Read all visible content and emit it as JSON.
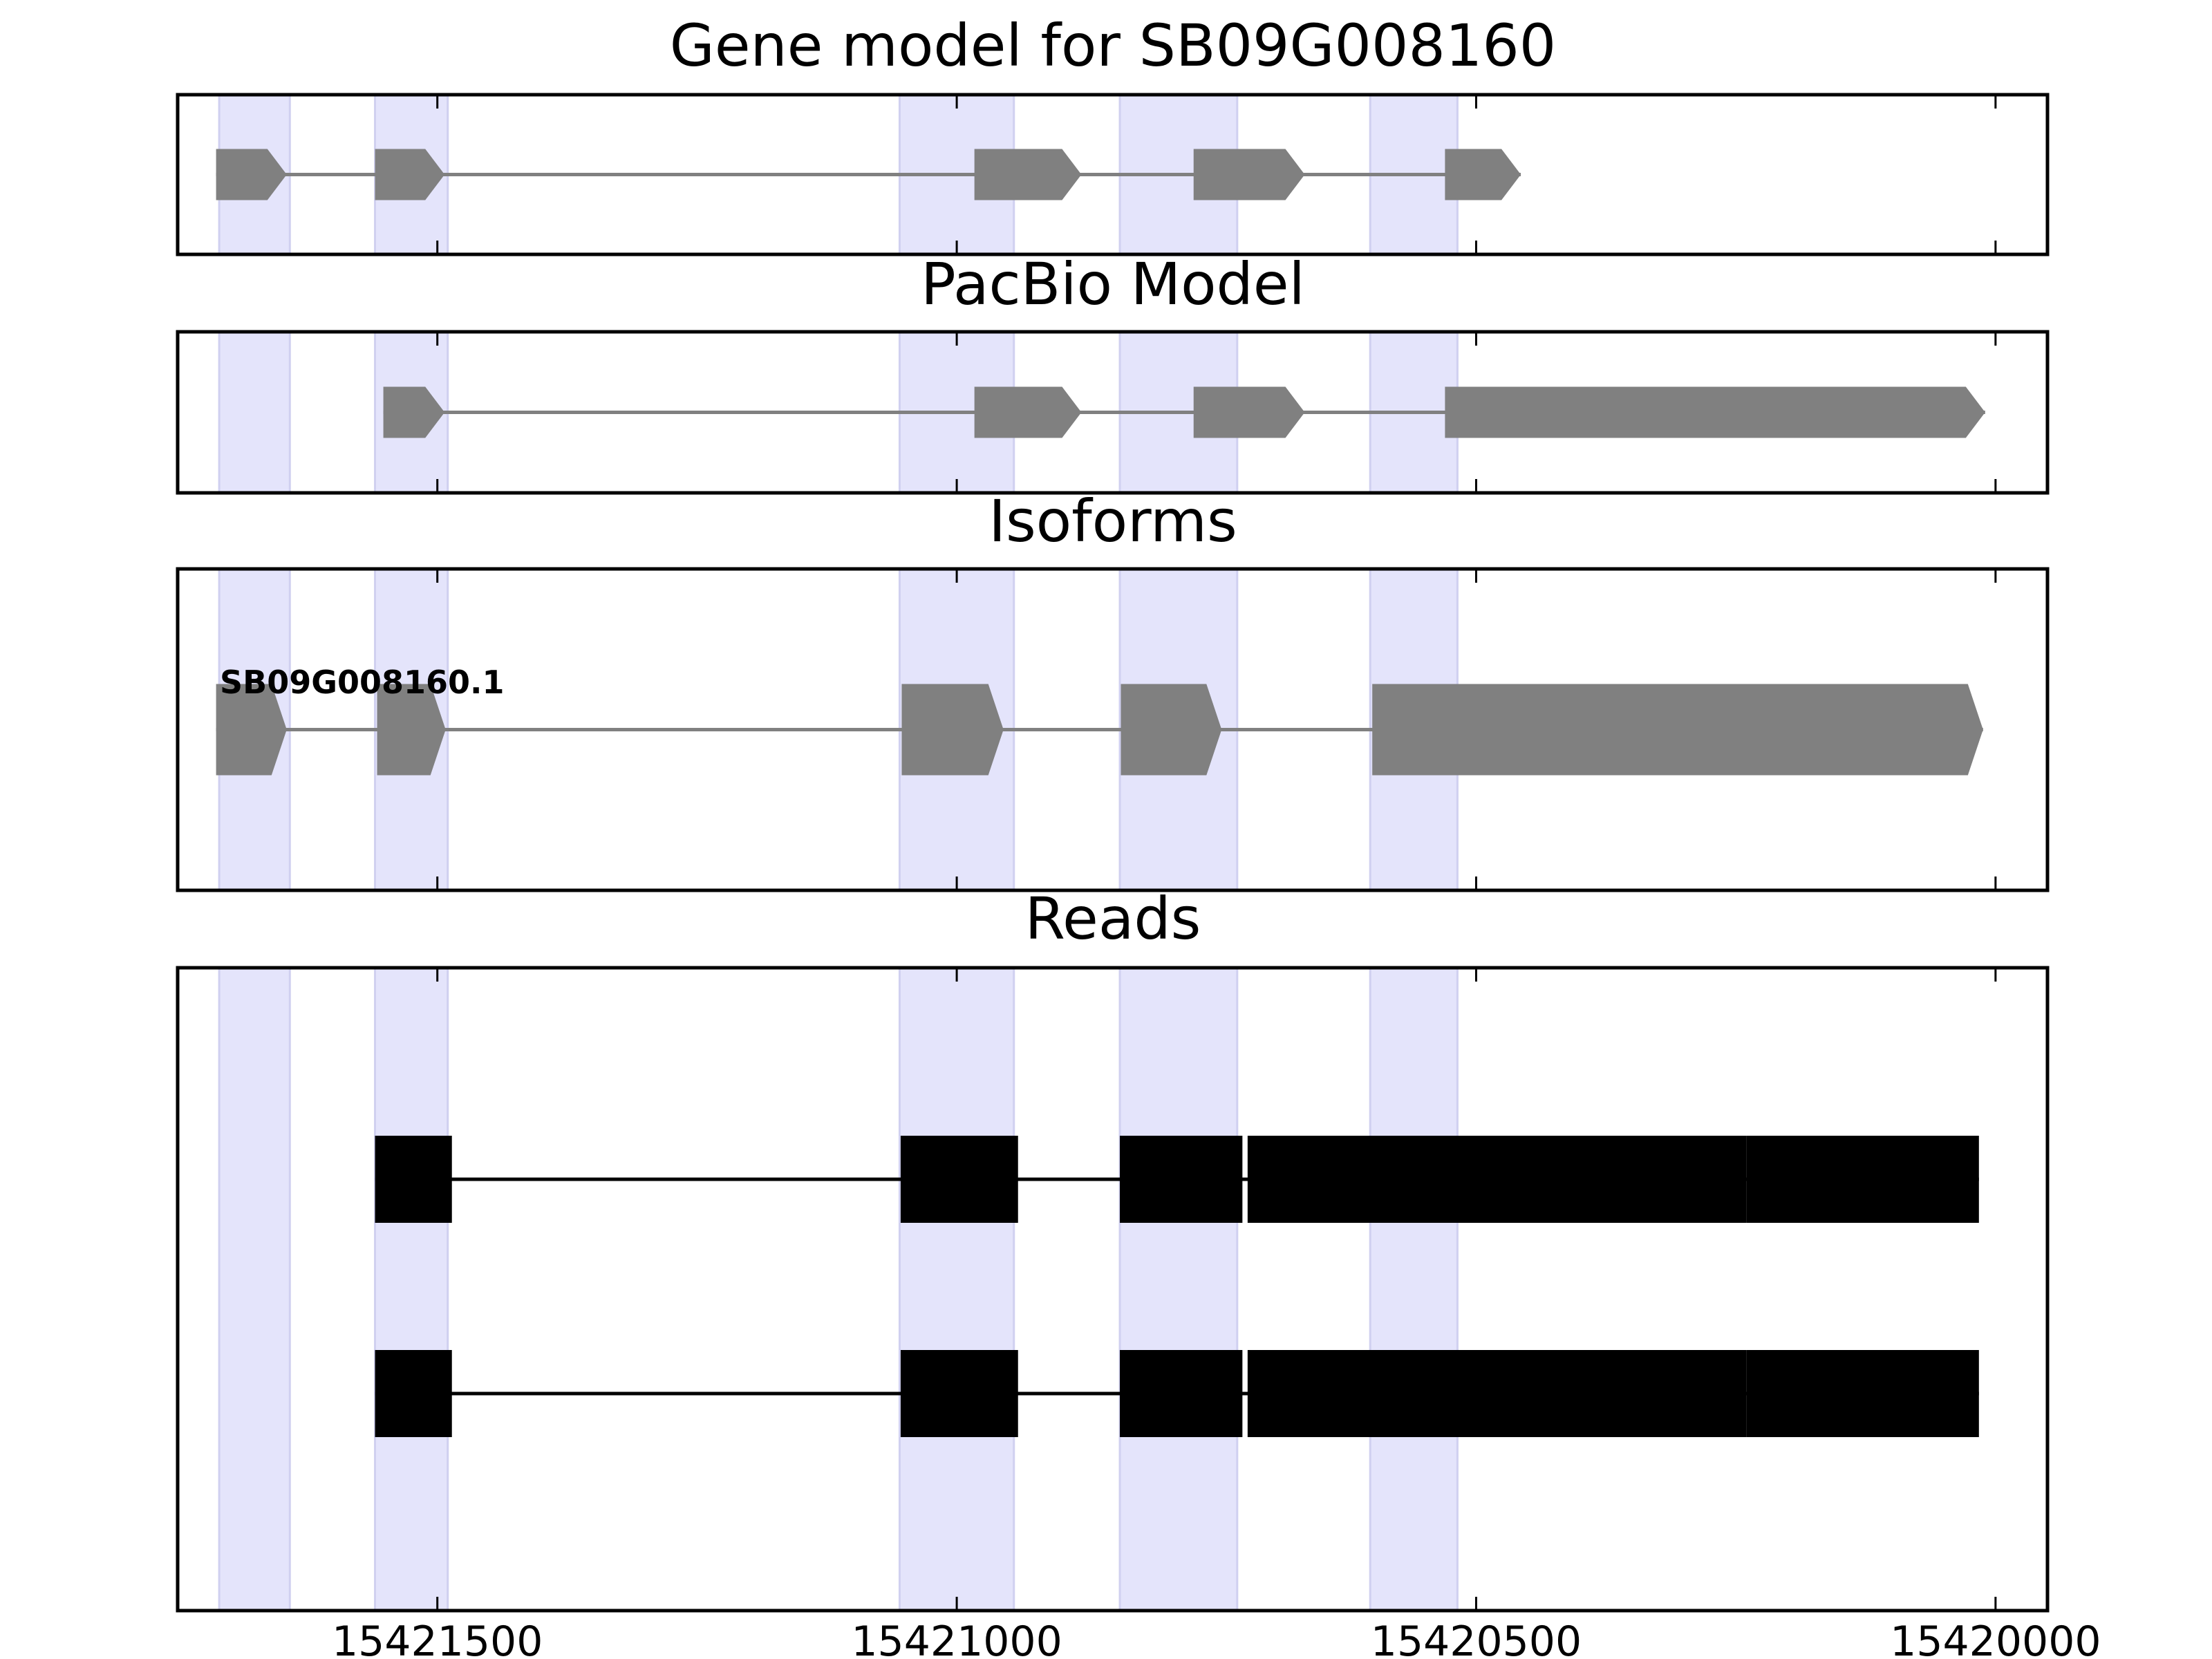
{
  "figure": {
    "title": "Gene model for SB09G008160"
  },
  "colors": {
    "exon_fill": "#808080",
    "intron_line": "#808080",
    "highlight_band": "#e4e4fb",
    "read_fill": "#000000",
    "frame": "#000000",
    "background": "#ffffff"
  },
  "chart_data": {
    "type": "gene-track",
    "axis": {
      "xlim": [
        15421750,
        15419950
      ],
      "inverted": true,
      "ticks": [
        15421500,
        15421000,
        15420500,
        15420000
      ],
      "tick_labels": [
        "15421500",
        "15421000",
        "15420500",
        "15420000"
      ]
    },
    "highlight_bands": [
      [
        15421710,
        15421642
      ],
      [
        15421560,
        15421490
      ],
      [
        15421055,
        15420945
      ],
      [
        15420843,
        15420730
      ],
      [
        15420602,
        15420518
      ]
    ],
    "panels": [
      {
        "title": "Gene model for SB09G008160",
        "kind": "gene",
        "transcripts": [
          {
            "label": "",
            "exons": [
              [
                15421713,
                15421645
              ],
              [
                15421560,
                15421493
              ],
              [
                15420983,
                15420880
              ],
              [
                15420772,
                15420665
              ],
              [
                15420530,
                15420457
              ]
            ]
          }
        ]
      },
      {
        "title": "PacBio Model",
        "kind": "gene",
        "transcripts": [
          {
            "label": "",
            "exons": [
              [
                15421552,
                15421493
              ],
              [
                15420983,
                15420880
              ],
              [
                15420772,
                15420665
              ],
              [
                15420530,
                15420010
              ]
            ]
          }
        ]
      },
      {
        "title": "Isoforms",
        "kind": "isoform",
        "transcripts": [
          {
            "label": "SB09G008160.1",
            "exons": [
              [
                15421713,
                15421645
              ],
              [
                15421558,
                15421492
              ],
              [
                15421053,
                15420955
              ],
              [
                15420842,
                15420745
              ],
              [
                15420600,
                15420012
              ]
            ]
          }
        ]
      },
      {
        "title": "Reads",
        "kind": "reads",
        "reads": [
          {
            "label": "",
            "exons": [
              [
                15421560,
                15421486
              ],
              [
                15421054,
                15420941
              ],
              [
                15420843,
                15420725
              ],
              [
                15420720,
                15420240
              ],
              [
                15420240,
                15420016
              ]
            ]
          },
          {
            "label": "",
            "exons": [
              [
                15421560,
                15421486
              ],
              [
                15421054,
                15420941
              ],
              [
                15420843,
                15420725
              ],
              [
                15420720,
                15420240
              ],
              [
                15420240,
                15420016
              ]
            ]
          }
        ]
      }
    ]
  }
}
